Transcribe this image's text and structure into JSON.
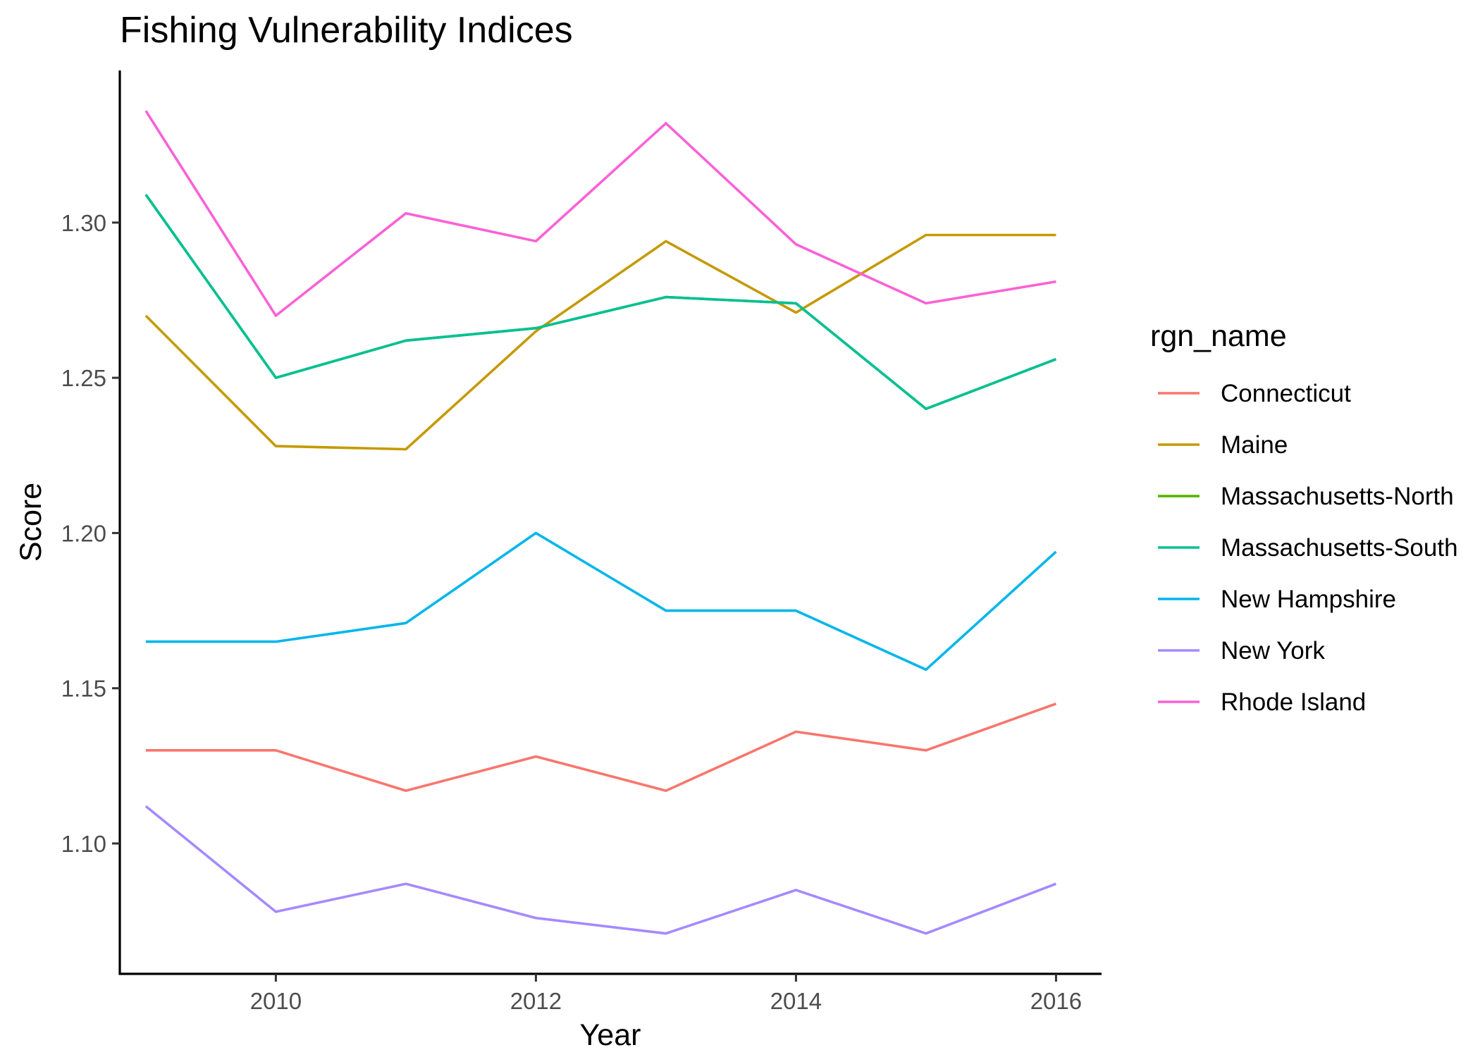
{
  "chart_data": {
    "type": "line",
    "title": "Fishing Vulnerability Indices",
    "xlabel": "Year",
    "ylabel": "Score",
    "x": [
      2009,
      2010,
      2011,
      2012,
      2013,
      2014,
      2015,
      2016
    ],
    "xlim": [
      2008.8,
      2016.35
    ],
    "ylim": [
      1.058,
      1.349
    ],
    "x_ticks": [
      2010,
      2012,
      2014,
      2016
    ],
    "x_tick_labels": [
      "2010",
      "2012",
      "2014",
      "2016"
    ],
    "y_ticks": [
      1.1,
      1.15,
      1.2,
      1.25,
      1.3
    ],
    "y_tick_labels": [
      "1.10",
      "1.15",
      "1.20",
      "1.25",
      "1.30"
    ],
    "grid": false,
    "legend": {
      "title": "rgn_name",
      "position": "right"
    },
    "series": [
      {
        "name": "Connecticut",
        "color": "#F8766D",
        "values": [
          1.13,
          1.13,
          1.117,
          1.128,
          1.117,
          1.136,
          1.13,
          1.145
        ]
      },
      {
        "name": "Maine",
        "color": "#C49A00",
        "values": [
          1.27,
          1.228,
          1.227,
          1.265,
          1.294,
          1.271,
          1.296,
          1.296
        ]
      },
      {
        "name": "Massachusetts-North",
        "color": "#53B400",
        "values": [
          1.309,
          1.25,
          1.262,
          1.266,
          1.276,
          1.274,
          1.24,
          1.256
        ]
      },
      {
        "name": "Massachusetts-South",
        "color": "#00C094",
        "values": [
          1.309,
          1.25,
          1.262,
          1.266,
          1.276,
          1.274,
          1.24,
          1.256
        ]
      },
      {
        "name": "New Hampshire",
        "color": "#00B6EB",
        "values": [
          1.165,
          1.165,
          1.171,
          1.2,
          1.175,
          1.175,
          1.156,
          1.194
        ]
      },
      {
        "name": "New York",
        "color": "#A58AFF",
        "values": [
          1.112,
          1.078,
          1.087,
          1.076,
          1.071,
          1.085,
          1.071,
          1.087
        ]
      },
      {
        "name": "Rhode Island",
        "color": "#FB61D7",
        "values": [
          1.336,
          1.27,
          1.303,
          1.294,
          1.332,
          1.293,
          1.274,
          1.281
        ]
      }
    ]
  }
}
